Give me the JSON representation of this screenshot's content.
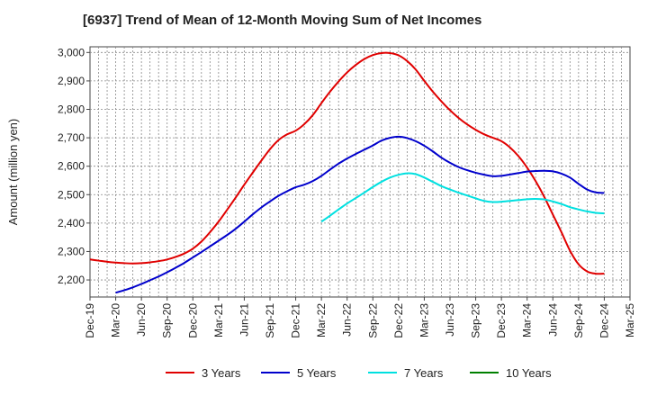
{
  "chart_data": {
    "type": "line",
    "title": "[6937]  Trend of Mean of 12-Month Moving Sum of Net Incomes",
    "xlabel": "",
    "ylabel": "Amount (million yen)",
    "ylim": [
      2140,
      3020
    ],
    "yticks": [
      2200,
      2300,
      2400,
      2500,
      2600,
      2700,
      2800,
      2900,
      3000
    ],
    "ytick_labels": [
      "2,200",
      "2,300",
      "2,400",
      "2,500",
      "2,600",
      "2,700",
      "2,800",
      "2,900",
      "3,000"
    ],
    "xticks": [
      "Dec-19",
      "Mar-20",
      "Jun-20",
      "Sep-20",
      "Dec-20",
      "Mar-21",
      "Jun-21",
      "Sep-21",
      "Dec-21",
      "Mar-22",
      "Jun-22",
      "Sep-22",
      "Dec-22",
      "Mar-23",
      "Jun-23",
      "Sep-23",
      "Dec-23",
      "Mar-24",
      "Jun-24",
      "Sep-24",
      "Dec-24",
      "Mar-25"
    ],
    "grid": true,
    "legend_position": "bottom",
    "series": [
      {
        "name": "3 Years",
        "color": "#e00000",
        "x": [
          "Dec-19",
          "Jan-20",
          "Feb-20",
          "Mar-20",
          "Apr-20",
          "May-20",
          "Jun-20",
          "Jul-20",
          "Aug-20",
          "Sep-20",
          "Oct-20",
          "Nov-20",
          "Dec-20",
          "Jan-21",
          "Feb-21",
          "Mar-21",
          "Apr-21",
          "May-21",
          "Jun-21",
          "Jul-21",
          "Aug-21",
          "Sep-21",
          "Oct-21",
          "Nov-21",
          "Dec-21",
          "Jan-22",
          "Feb-22",
          "Mar-22",
          "Apr-22",
          "May-22",
          "Jun-22",
          "Jul-22",
          "Aug-22",
          "Sep-22",
          "Oct-22",
          "Nov-22",
          "Dec-22",
          "Jan-23",
          "Feb-23",
          "Mar-23",
          "Apr-23",
          "May-23",
          "Jun-23",
          "Jul-23",
          "Aug-23",
          "Sep-23",
          "Oct-23",
          "Nov-23",
          "Dec-23",
          "Jan-24",
          "Feb-24",
          "Mar-24",
          "Apr-24",
          "May-24",
          "Jun-24",
          "Jul-24",
          "Aug-24",
          "Sep-24",
          "Oct-24",
          "Nov-24",
          "Dec-24"
        ],
        "values": [
          2272,
          2268,
          2264,
          2261,
          2259,
          2258,
          2259,
          2262,
          2266,
          2272,
          2281,
          2293,
          2310,
          2335,
          2368,
          2405,
          2447,
          2490,
          2535,
          2578,
          2620,
          2660,
          2692,
          2712,
          2725,
          2748,
          2780,
          2822,
          2862,
          2898,
          2930,
          2956,
          2977,
          2991,
          2998,
          2998,
          2990,
          2970,
          2940,
          2900,
          2862,
          2828,
          2797,
          2770,
          2747,
          2728,
          2712,
          2700,
          2688,
          2666,
          2635,
          2595,
          2547,
          2492,
          2430,
          2368,
          2303,
          2255,
          2230,
          2222,
          2222
        ]
      },
      {
        "name": "5 Years",
        "color": "#0000cc",
        "x": [
          "Mar-20",
          "Apr-20",
          "May-20",
          "Jun-20",
          "Jul-20",
          "Aug-20",
          "Sep-20",
          "Oct-20",
          "Nov-20",
          "Dec-20",
          "Jan-21",
          "Feb-21",
          "Mar-21",
          "Apr-21",
          "May-21",
          "Jun-21",
          "Jul-21",
          "Aug-21",
          "Sep-21",
          "Oct-21",
          "Nov-21",
          "Dec-21",
          "Jan-22",
          "Feb-22",
          "Mar-22",
          "Apr-22",
          "May-22",
          "Jun-22",
          "Jul-22",
          "Aug-22",
          "Sep-22",
          "Oct-22",
          "Nov-22",
          "Dec-22",
          "Jan-23",
          "Feb-23",
          "Mar-23",
          "Apr-23",
          "May-23",
          "Jun-23",
          "Jul-23",
          "Aug-23",
          "Sep-23",
          "Oct-23",
          "Nov-23",
          "Dec-23",
          "Jan-24",
          "Feb-24",
          "Mar-24",
          "Apr-24",
          "May-24",
          "Jun-24",
          "Jul-24",
          "Aug-24",
          "Sep-24",
          "Oct-24",
          "Nov-24",
          "Dec-24"
        ],
        "values": [
          2155,
          2164,
          2174,
          2186,
          2199,
          2212,
          2227,
          2243,
          2260,
          2279,
          2298,
          2318,
          2338,
          2358,
          2380,
          2405,
          2431,
          2455,
          2476,
          2496,
          2512,
          2526,
          2535,
          2548,
          2566,
          2588,
          2609,
          2627,
          2643,
          2658,
          2673,
          2690,
          2700,
          2704,
          2699,
          2688,
          2672,
          2652,
          2630,
          2612,
          2597,
          2586,
          2577,
          2570,
          2565,
          2566,
          2571,
          2576,
          2581,
          2583,
          2584,
          2582,
          2574,
          2560,
          2538,
          2518,
          2508,
          2506
        ]
      },
      {
        "name": "7 Years",
        "color": "#00e0e0",
        "x": [
          "Mar-22",
          "Apr-22",
          "May-22",
          "Jun-22",
          "Jul-22",
          "Aug-22",
          "Sep-22",
          "Oct-22",
          "Nov-22",
          "Dec-22",
          "Jan-23",
          "Feb-23",
          "Mar-23",
          "Apr-23",
          "May-23",
          "Jun-23",
          "Jul-23",
          "Aug-23",
          "Sep-23",
          "Oct-23",
          "Nov-23",
          "Dec-23",
          "Jan-24",
          "Feb-24",
          "Mar-24",
          "Apr-24",
          "May-24",
          "Jun-24",
          "Jul-24",
          "Aug-24",
          "Sep-24",
          "Oct-24",
          "Nov-24",
          "Dec-24"
        ],
        "values": [
          2405,
          2426,
          2448,
          2469,
          2488,
          2507,
          2527,
          2545,
          2560,
          2570,
          2575,
          2572,
          2560,
          2545,
          2530,
          2518,
          2507,
          2497,
          2487,
          2478,
          2474,
          2475,
          2478,
          2481,
          2484,
          2485,
          2483,
          2476,
          2467,
          2456,
          2448,
          2441,
          2436,
          2434
        ]
      },
      {
        "name": "10 Years",
        "color": "#008000",
        "x": [],
        "values": []
      }
    ]
  }
}
